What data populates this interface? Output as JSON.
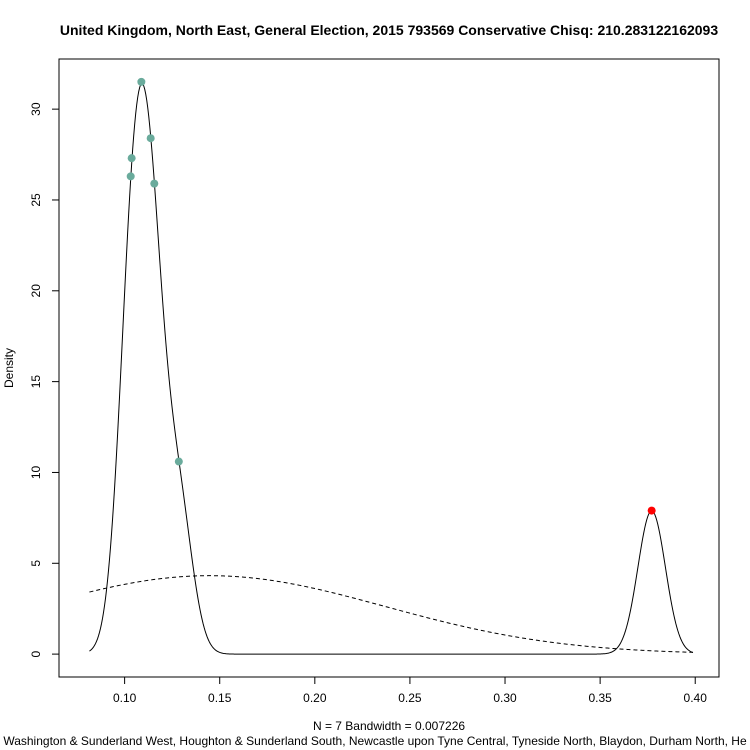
{
  "chart_data": {
    "type": "line",
    "title": "United Kingdom, North East, General Election, 2015 793569 Conservative Chisq: 210.283122162093",
    "xlabel": "N = 7   Bandwidth = 0.007226",
    "ylabel": "Density",
    "subtitle": "Washington & Sunderland West, Houghton & Sunderland South, Newcastle upon Tyne Central, Tyneside North, Blaydon, Durham North, He",
    "xlim": [
      0.0655,
      0.4125
    ],
    "ylim": [
      -1.26,
      32.76
    ],
    "x_ticks": [
      0.1,
      0.15,
      0.2,
      0.25,
      0.3,
      0.35,
      0.4
    ],
    "x_tick_labels": [
      "0.10",
      "0.15",
      "0.20",
      "0.25",
      "0.30",
      "0.35",
      "0.40"
    ],
    "y_ticks": [
      0,
      5,
      10,
      15,
      20,
      25,
      30
    ],
    "y_tick_labels": [
      "0",
      "5",
      "10",
      "15",
      "20",
      "25",
      "30"
    ],
    "grid": false,
    "bandwidth": 0.007226,
    "series": [
      {
        "style": "solid",
        "kind": "kernel-density",
        "sample": [
          0.1032,
          0.1037,
          0.1088,
          0.1137,
          0.1156,
          0.1285,
          0.3771
        ],
        "x_range": [
          0.0815,
          0.3988
        ]
      },
      {
        "style": "dashed",
        "kind": "normal-density",
        "mean": 0.1447,
        "sd": 0.0924,
        "x_range": [
          0.0815,
          0.3988
        ]
      }
    ],
    "points": [
      {
        "x": 0.1032,
        "y": 26.3,
        "color": "#6aab9c"
      },
      {
        "x": 0.1037,
        "y": 27.3,
        "color": "#6aab9c"
      },
      {
        "x": 0.1088,
        "y": 31.5,
        "color": "#6aab9c"
      },
      {
        "x": 0.1137,
        "y": 28.4,
        "color": "#6aab9c"
      },
      {
        "x": 0.1156,
        "y": 25.9,
        "color": "#6aab9c"
      },
      {
        "x": 0.1285,
        "y": 10.6,
        "color": "#6aab9c"
      },
      {
        "x": 0.3771,
        "y": 7.9,
        "color": "#ff0000"
      }
    ]
  }
}
